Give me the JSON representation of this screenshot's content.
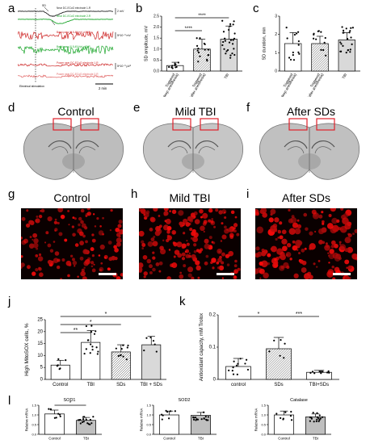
{
  "panel_labels": {
    "a": "a",
    "b": "b",
    "c": "c",
    "d": "d",
    "e": "e",
    "f": "f",
    "g": "g",
    "h": "h",
    "i": "i",
    "j": "j",
    "k": "k",
    "l": "l"
  },
  "trace_panel": {
    "traces": [
      {
        "label": "Near DC-ECoG electrode 1-R",
        "unit": "2 mV",
        "color": "#222222"
      },
      {
        "label": "Near DC-ECoG electrode 2-R",
        "unit": "",
        "color": "#1aa52a"
      },
      {
        "label": "Band-pass (0.5-45 Hz) of 1-R",
        "unit": "5*10⁻³ mV",
        "color": "#cc2020"
      },
      {
        "label": "Band-pass (0.5-45 Hz) of 2-R",
        "unit": "",
        "color": "#1aa52a"
      },
      {
        "label": "Power near DC-ECoG electrode 1-R",
        "unit": "5*10⁻³ μV²",
        "color": "#cc2020"
      },
      {
        "label": "Power near DC-ECoG electrode 2-R",
        "unit": "",
        "color": "#e06060"
      }
    ],
    "event_label": "SD",
    "stim_label": "Electrical stimulation",
    "time_scale": "2 min"
  },
  "panel_b": {
    "ylabel": "SD amplitude, mV",
    "ticks": [
      "0.0",
      "0.5",
      "1.0",
      "1.5",
      "2.0",
      "2.5"
    ],
    "categories": [
      "Triggered\n(deep anesthesia)",
      "Triggered\n(after anesthesia)",
      "TBI"
    ],
    "sig": [
      "****",
      "****"
    ]
  },
  "panel_c": {
    "ylabel": "SD duration, min",
    "ticks": [
      "0",
      "1",
      "2",
      "3"
    ],
    "categories": [
      "Triggered\n(deep anesthesia)",
      "Triggered\n(after anesthesia)",
      "TBI"
    ]
  },
  "section_titles": {
    "d": "Control",
    "e": "Mild TBI",
    "f": "After SDs",
    "g": "Control",
    "h": "Mild TBI",
    "i": "After SDs"
  },
  "panel_j": {
    "ylabel": "High MitoSOX cells, %",
    "ticks": [
      "0",
      "5",
      "10",
      "15",
      "20",
      "25"
    ],
    "categories": [
      "Control",
      "TBI",
      "SDs",
      "TBI + SDs"
    ],
    "sig": [
      "**",
      "*",
      "*"
    ]
  },
  "panel_k": {
    "ylabel": "Antioxidant capacity, mM Trolox",
    "ticks": [
      "0",
      "0.1",
      "0.2"
    ],
    "categories": [
      "control",
      "SDs",
      "TBI+SDs"
    ],
    "sig": [
      "*",
      "***"
    ]
  },
  "panel_l": [
    {
      "title": "SOD1",
      "ylabel": "Relative mRNA",
      "categories": [
        "Control",
        "TBI"
      ],
      "sig": "*",
      "ticks": [
        "0.0",
        "0.5",
        "1.0",
        "1.5"
      ]
    },
    {
      "title": "SOD2",
      "ylabel": "Relative mRNA",
      "categories": [
        "Control",
        "TBI"
      ],
      "sig": "",
      "ticks": [
        "0.0",
        "0.5",
        "1.0",
        "1.5"
      ]
    },
    {
      "title": "Catalase",
      "ylabel": "Relative mRNA",
      "categories": [
        "Control",
        "TBI"
      ],
      "sig": "",
      "ticks": [
        "0.0",
        "0.5",
        "1.0",
        "1.5"
      ]
    }
  ],
  "chart_data": [
    {
      "type": "bar",
      "panel": "b",
      "categories": [
        "Triggered (deep anesthesia)",
        "Triggered (after anesthesia)",
        "TBI"
      ],
      "values": [
        0.25,
        1.0,
        1.45
      ],
      "ylim": [
        0,
        2.5
      ],
      "ylabel": "SD amplitude, mV"
    },
    {
      "type": "bar",
      "panel": "c",
      "categories": [
        "Triggered (deep anesthesia)",
        "Triggered (after anesthesia)",
        "TBI"
      ],
      "values": [
        1.5,
        1.5,
        1.7
      ],
      "ylim": [
        0,
        3
      ],
      "ylabel": "SD duration, min"
    },
    {
      "type": "bar",
      "panel": "j",
      "categories": [
        "Control",
        "TBI",
        "SDs",
        "TBI + SDs"
      ],
      "values": [
        6,
        15.5,
        11.5,
        14.5
      ],
      "ylim": [
        0,
        25
      ],
      "ylabel": "High MitoSOX cells, %"
    },
    {
      "type": "bar",
      "panel": "k",
      "categories": [
        "control",
        "SDs",
        "TBI+SDs"
      ],
      "values": [
        0.04,
        0.095,
        0.022
      ],
      "ylim": [
        0,
        0.2
      ],
      "ylabel": "Antioxidant capacity, mM Trolox"
    },
    {
      "type": "bar",
      "panel": "l-SOD1",
      "categories": [
        "Control",
        "TBI"
      ],
      "values": [
        1.05,
        0.72
      ],
      "ylim": [
        0,
        1.5
      ],
      "ylabel": "Relative mRNA"
    },
    {
      "type": "bar",
      "panel": "l-SOD2",
      "categories": [
        "Control",
        "TBI"
      ],
      "values": [
        1.0,
        0.98
      ],
      "ylim": [
        0,
        1.5
      ],
      "ylabel": "Relative mRNA"
    },
    {
      "type": "bar",
      "panel": "l-Catalase",
      "categories": [
        "Control",
        "TBI"
      ],
      "values": [
        1.0,
        0.9
      ],
      "ylim": [
        0,
        1.5
      ],
      "ylabel": "Relative mRNA"
    }
  ]
}
